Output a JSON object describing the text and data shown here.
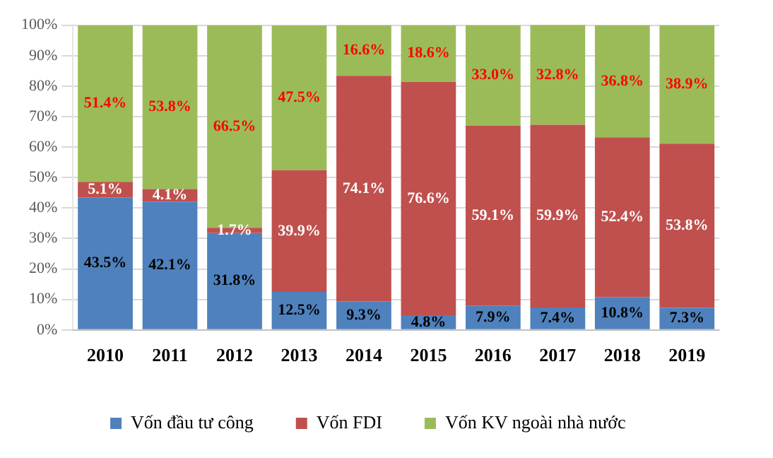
{
  "chart_data": {
    "type": "bar",
    "stacked": true,
    "categories": [
      "2010",
      "2011",
      "2012",
      "2013",
      "2014",
      "2015",
      "2016",
      "2017",
      "2018",
      "2019"
    ],
    "series": [
      {
        "name": "Vốn đầu tư công",
        "color": "#4f81bd",
        "values": [
          43.5,
          42.1,
          31.8,
          12.5,
          9.3,
          4.8,
          7.9,
          7.4,
          10.8,
          7.3
        ],
        "value_labels": [
          "43.5%",
          "42.1%",
          "31.8%",
          "12.5%",
          "9.3%",
          "4.8%",
          "7.9%",
          "7.4%",
          "10.8%",
          "7.3%"
        ]
      },
      {
        "name": "Vốn FDI",
        "color": "#c0504d",
        "values": [
          5.1,
          4.1,
          1.7,
          39.9,
          74.1,
          76.6,
          59.1,
          59.9,
          52.4,
          53.8
        ],
        "value_labels": [
          "5.1%",
          "4.1%",
          "1.7%",
          "39.9%",
          "74.1%",
          "76.6%",
          "59.1%",
          "59.9%",
          "52.4%",
          "53.8%"
        ]
      },
      {
        "name": "Vốn KV ngoài nhà nước",
        "color": "#9bbb59",
        "values": [
          51.4,
          53.8,
          66.5,
          47.5,
          16.6,
          18.6,
          33.0,
          32.8,
          36.8,
          38.9
        ],
        "value_labels": [
          "51.4%",
          "53.8%",
          "66.5%",
          "47.5%",
          "16.6%",
          "18.6%",
          "33.0%",
          "32.8%",
          "36.8%",
          "38.9%"
        ]
      }
    ],
    "ylim": [
      0,
      100.1
    ],
    "yticks": [
      {
        "value": 0,
        "label": "0%"
      },
      {
        "value": 10,
        "label": "10%"
      },
      {
        "value": 20,
        "label": "20%"
      },
      {
        "value": 30,
        "label": "30%"
      },
      {
        "value": 40,
        "label": "40%"
      },
      {
        "value": 50,
        "label": "50%"
      },
      {
        "value": 60,
        "label": "60%"
      },
      {
        "value": 70,
        "label": "70%"
      },
      {
        "value": 80,
        "label": "80%"
      },
      {
        "value": 90,
        "label": "90%"
      },
      {
        "value": 100,
        "label": "100%"
      }
    ],
    "grid": "y",
    "legend": "bottom"
  }
}
